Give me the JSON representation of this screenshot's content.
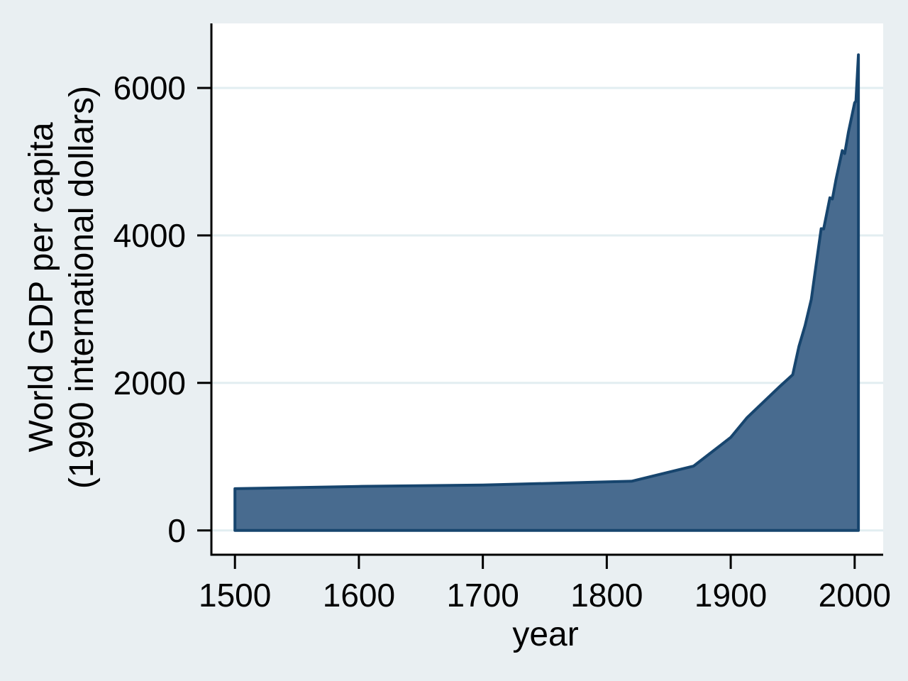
{
  "figure": {
    "background_color": "#e9eff2",
    "plot_background": "#ffffff",
    "gridline_color": "#e2eef1",
    "axis_color": "#000000",
    "text_color": "#000000"
  },
  "chart_data": {
    "type": "area",
    "title": "",
    "xlabel": "year",
    "ylabel_line1": "World GDP per capita",
    "ylabel_line2": "(1990 international dollars)",
    "x_ticks": [
      "1500",
      "1600",
      "1700",
      "1800",
      "1900",
      "2000"
    ],
    "x_tick_values": [
      1500,
      1600,
      1700,
      1800,
      1900,
      2000
    ],
    "y_ticks": [
      "0",
      "2000",
      "4000",
      "6000"
    ],
    "y_tick_values": [
      0,
      2000,
      4000,
      6000
    ],
    "xlim": [
      1481,
      2023
    ],
    "ylim": [
      -330,
      6875
    ],
    "grid": true,
    "legend": "none",
    "baseline": 0,
    "series": [
      {
        "name": "World GDP per capita (1990 international dollars)",
        "fill_color": "#486b8f",
        "line_color": "#17456e",
        "points": [
          [
            1500,
            566
          ],
          [
            1600,
            596
          ],
          [
            1700,
            615
          ],
          [
            1820,
            667
          ],
          [
            1870,
            871
          ],
          [
            1900,
            1261
          ],
          [
            1913,
            1526
          ],
          [
            1940,
            1958
          ],
          [
            1950,
            2111
          ],
          [
            1955,
            2493
          ],
          [
            1960,
            2777
          ],
          [
            1965,
            3133
          ],
          [
            1970,
            3736
          ],
          [
            1973,
            4091
          ],
          [
            1975,
            4088
          ],
          [
            1980,
            4511
          ],
          [
            1982,
            4494
          ],
          [
            1985,
            4764
          ],
          [
            1990,
            5150
          ],
          [
            1992,
            5110
          ],
          [
            1995,
            5404
          ],
          [
            2000,
            5800
          ],
          [
            2001,
            5820
          ],
          [
            2003,
            6450
          ]
        ]
      }
    ]
  }
}
